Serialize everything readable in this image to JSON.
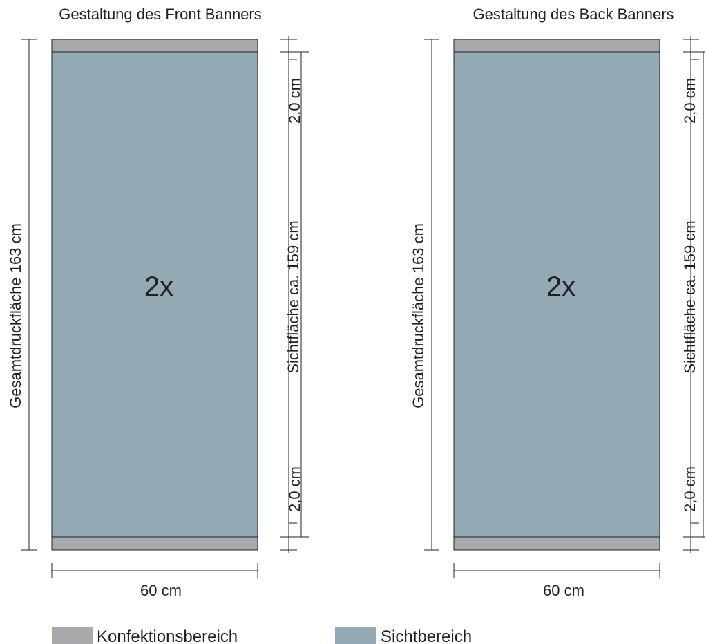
{
  "colors": {
    "konfektionsbereich": "#a7a9ac",
    "sichtbereich": "#93a9b3"
  },
  "banners": [
    {
      "title": "Gestaltung des Front Banners",
      "multiplier": "2x",
      "total_height_label": "Gesamtdruckfläche 163 cm",
      "visible_height_label": "Sichtfläche ca. 159 cm",
      "top_margin_label": "2,0 cm",
      "bottom_margin_label": "2,0 cm",
      "width_label": "60 cm"
    },
    {
      "title": "Gestaltung des Back Banners",
      "multiplier": "2x",
      "total_height_label": "Gesamtdruckfläche 163 cm",
      "visible_height_label": "Sichtfläche ca. 159 cm",
      "top_margin_label": "2,0 cm",
      "bottom_margin_label": "2,0 cm",
      "width_label": "60 cm"
    }
  ],
  "legend": [
    {
      "label": "Konfektionsbereich",
      "color": "#a7a9ac"
    },
    {
      "label": "Sichtbereich",
      "color": "#93a9b3"
    }
  ]
}
